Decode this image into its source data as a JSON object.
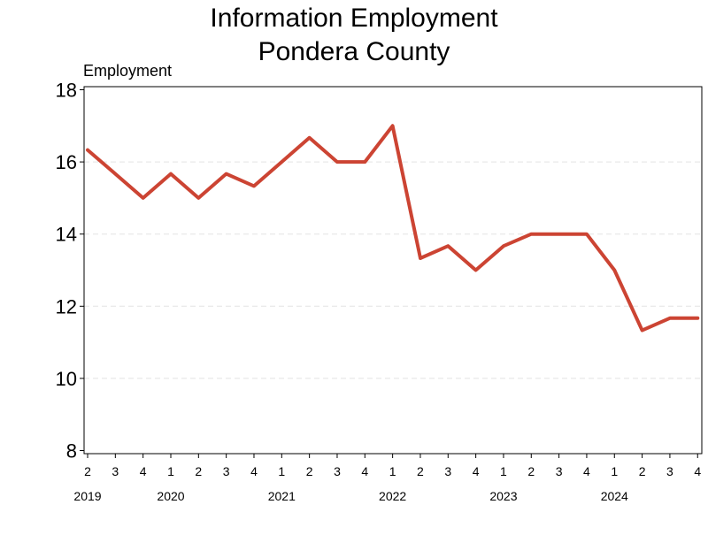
{
  "chart_data": {
    "type": "line",
    "title": "Information Employment",
    "subtitle": "Pondera County",
    "ylabel": "Employment",
    "ylim": [
      8,
      18
    ],
    "yticks": [
      8,
      10,
      12,
      14,
      16,
      18
    ],
    "grid": true,
    "x_quarters": [
      "2",
      "3",
      "4",
      "1",
      "2",
      "3",
      "4",
      "1",
      "2",
      "3",
      "4",
      "1",
      "2",
      "3",
      "4",
      "1",
      "2",
      "3",
      "4",
      "1",
      "2",
      "3",
      "4"
    ],
    "year_labels": [
      {
        "year": "2019",
        "quarter_index": 0
      },
      {
        "year": "2020",
        "quarter_index": 3
      },
      {
        "year": "2021",
        "quarter_index": 7
      },
      {
        "year": "2022",
        "quarter_index": 11
      },
      {
        "year": "2023",
        "quarter_index": 15
      },
      {
        "year": "2024",
        "quarter_index": 19
      }
    ],
    "series": [
      {
        "values": [
          16.33,
          15.67,
          15.0,
          15.67,
          15.0,
          15.67,
          15.33,
          16.0,
          16.67,
          16.0,
          16.0,
          17.0,
          13.33,
          13.67,
          13.0,
          13.67,
          14.0,
          14.0,
          14.0,
          13.0,
          11.33,
          11.67,
          11.67
        ],
        "color": "#CC4433"
      }
    ]
  }
}
